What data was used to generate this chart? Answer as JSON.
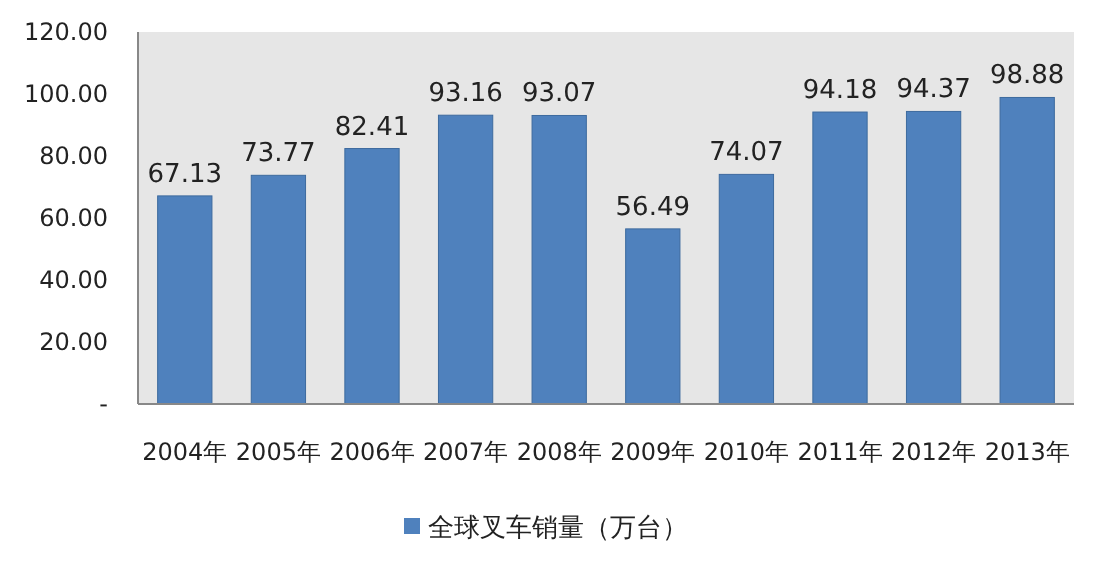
{
  "chart_data": {
    "type": "bar",
    "categories": [
      "2004年",
      "2005年",
      "2006年",
      "2007年",
      "2008年",
      "2009年",
      "2010年",
      "2011年",
      "2012年",
      "2013年"
    ],
    "series": [
      {
        "name": "全球叉车销量（万台）",
        "color": "#4f81bd",
        "values": [
          67.13,
          73.77,
          82.41,
          93.16,
          93.07,
          56.49,
          74.07,
          94.18,
          94.37,
          98.88
        ]
      }
    ],
    "ylim": [
      0,
      120
    ],
    "yticks": [
      {
        "value": 0,
        "label": "-"
      },
      {
        "value": 20,
        "label": "20.00"
      },
      {
        "value": 40,
        "label": "40.00"
      },
      {
        "value": 60,
        "label": "60.00"
      },
      {
        "value": 80,
        "label": "80.00"
      },
      {
        "value": 100,
        "label": "100.00"
      },
      {
        "value": 120,
        "label": "120.00"
      }
    ],
    "data_labels": true,
    "legend": "bottom",
    "grid": false
  }
}
